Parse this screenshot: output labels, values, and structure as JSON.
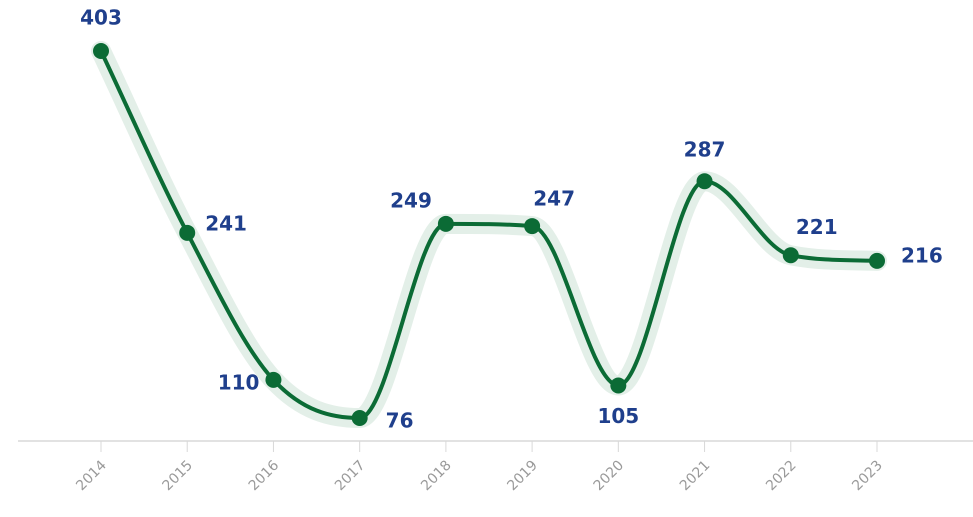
{
  "chart_data": {
    "type": "line",
    "categories": [
      "2014",
      "2015",
      "2016",
      "2017",
      "2018",
      "2019",
      "2020",
      "2021",
      "2022",
      "2023"
    ],
    "values": [
      403,
      241,
      110,
      76,
      249,
      247,
      105,
      287,
      221,
      216
    ],
    "color": "#0b6b35"
  }
}
